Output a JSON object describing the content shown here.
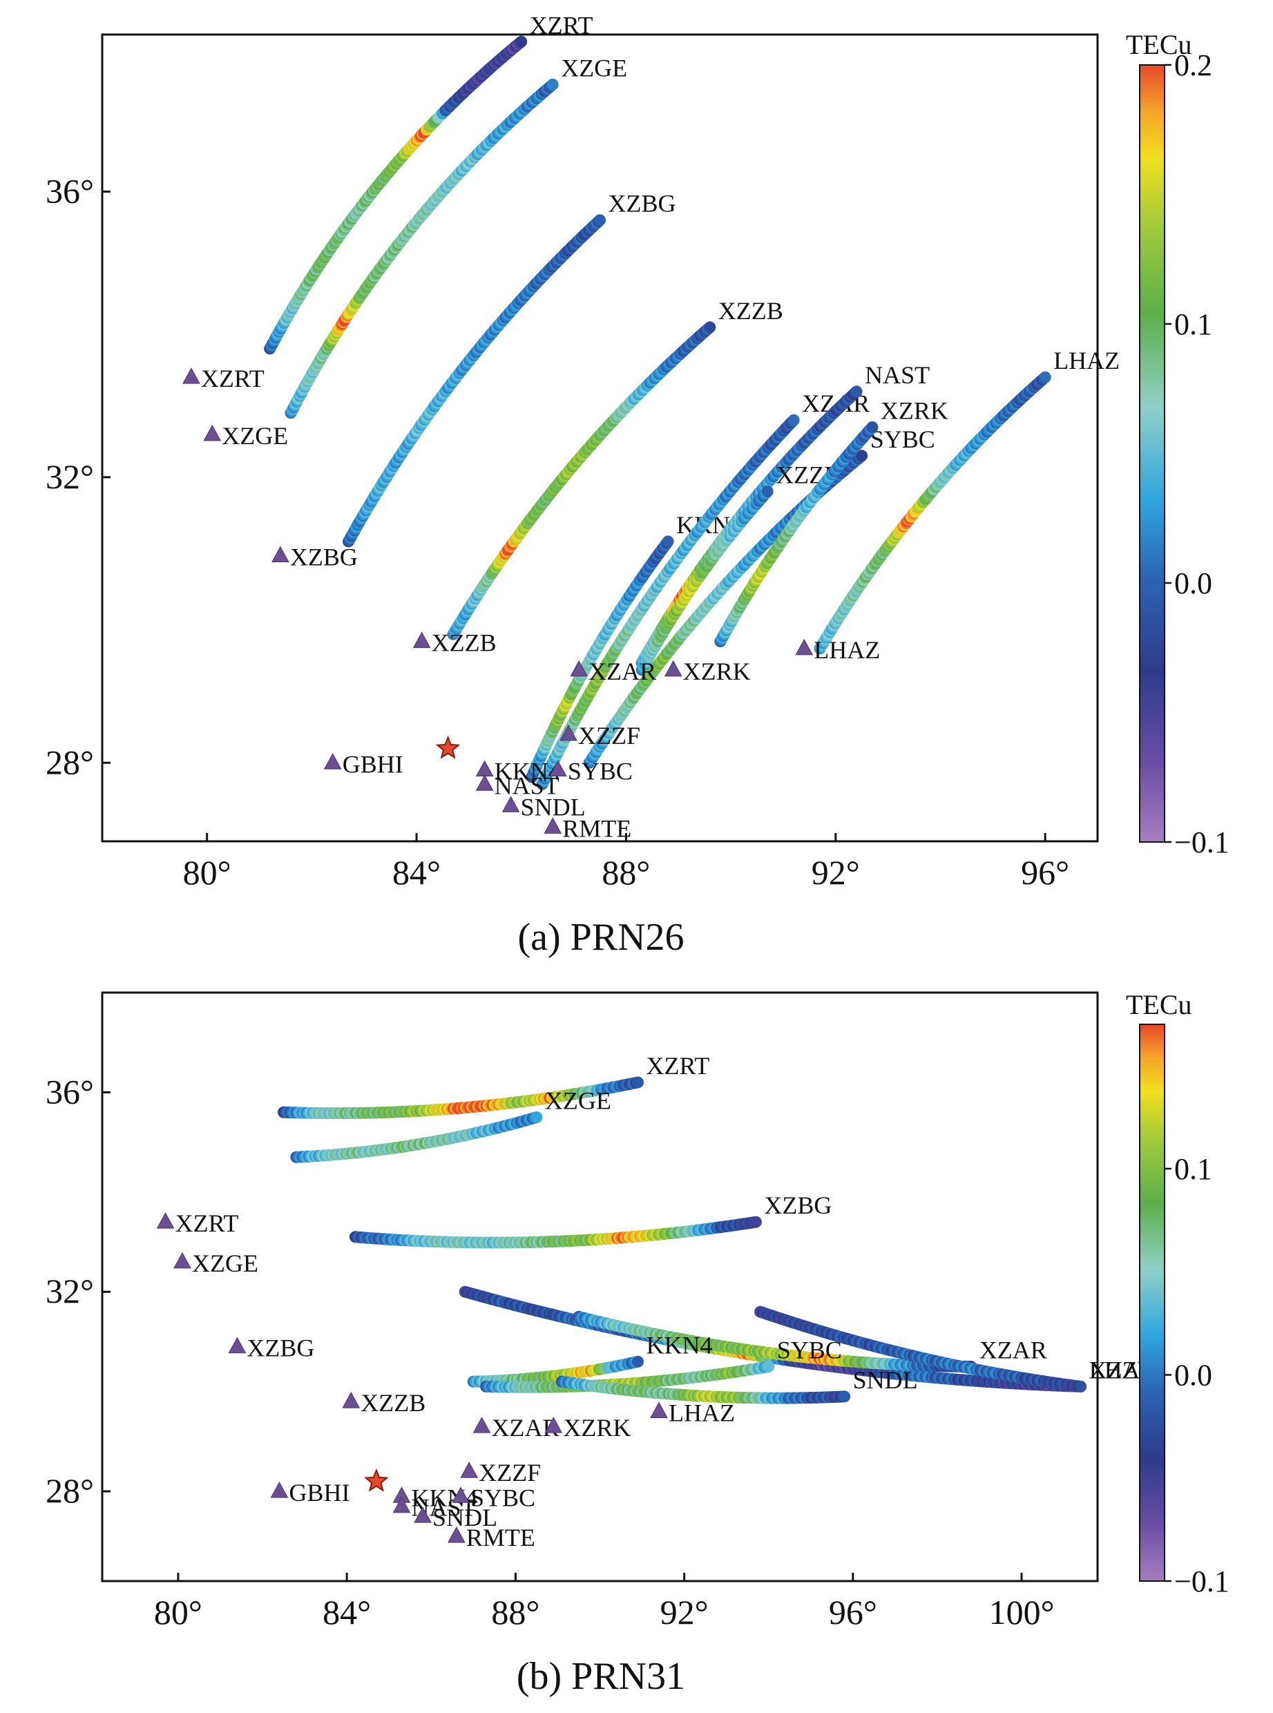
{
  "chart_data": [
    {
      "type": "scatter",
      "title": "(a) PRN26",
      "xlabel": "",
      "ylabel": "",
      "xlim": [
        78,
        97
      ],
      "ylim": [
        26.9,
        38.2
      ],
      "xticks": [
        80,
        84,
        88,
        92,
        96
      ],
      "xtick_labels": [
        "80°",
        "84°",
        "88°",
        "92°",
        "96°"
      ],
      "yticks": [
        28,
        32,
        36
      ],
      "ytick_labels": [
        "28°",
        "32°",
        "36°"
      ],
      "colorbar": {
        "label": "TECu",
        "min": -0.1,
        "max": 0.2,
        "ticks": [
          -0.1,
          0.0,
          0.1,
          0.2
        ],
        "tick_labels": [
          "−0.1",
          "0.0",
          "0.1",
          "0.2"
        ]
      },
      "epicenter": {
        "name": "KKN4",
        "lon": 84.6,
        "lat": 28.2
      },
      "stations": [
        {
          "name": "XZRT",
          "lon": 79.7,
          "lat": 33.4
        },
        {
          "name": "XZGE",
          "lon": 80.1,
          "lat": 32.6
        },
        {
          "name": "XZBG",
          "lon": 81.4,
          "lat": 30.9
        },
        {
          "name": "XZZB",
          "lon": 84.1,
          "lat": 29.7
        },
        {
          "name": "GBHI",
          "lon": 82.4,
          "lat": 28.0
        },
        {
          "name": "KKN4",
          "lon": 85.3,
          "lat": 27.9
        },
        {
          "name": "NAST",
          "lon": 85.3,
          "lat": 27.7
        },
        {
          "name": "SNDL",
          "lon": 85.8,
          "lat": 27.4
        },
        {
          "name": "SYBC",
          "lon": 86.7,
          "lat": 27.9
        },
        {
          "name": "RMTE",
          "lon": 86.6,
          "lat": 27.1
        },
        {
          "name": "XZZF",
          "lon": 86.9,
          "lat": 28.4
        },
        {
          "name": "XZAR",
          "lon": 87.1,
          "lat": 29.3
        },
        {
          "name": "XZRK",
          "lon": 88.9,
          "lat": 29.3
        },
        {
          "name": "LHAZ",
          "lon": 91.4,
          "lat": 29.6
        }
      ],
      "tracks": [
        {
          "name": "XZRT",
          "start": [
            81.2,
            33.8
          ],
          "end": [
            86.0,
            38.1
          ],
          "bulge": -0.1,
          "values": [
            0.0,
            0.05,
            0.08,
            0.1,
            0.09,
            0.08,
            0.1,
            0.12,
            0.2,
            0.0,
            -0.05,
            -0.04,
            -0.05
          ]
        },
        {
          "name": "XZGE",
          "start": [
            81.6,
            32.9
          ],
          "end": [
            86.6,
            37.5
          ],
          "bulge": -0.1,
          "values": [
            0.03,
            0.06,
            0.08,
            0.2,
            0.1,
            0.09,
            0.08,
            0.07,
            0.06,
            0.05,
            0.03,
            0.02,
            0.0
          ]
        },
        {
          "name": "XZBG",
          "start": [
            82.7,
            31.1
          ],
          "end": [
            87.5,
            35.6
          ],
          "bulge": -0.08,
          "values": [
            0.0,
            0.03,
            0.04,
            0.03,
            0.05,
            0.04,
            0.03,
            0.02,
            0.02,
            0.01,
            0.0,
            -0.01,
            -0.01
          ]
        },
        {
          "name": "XZZB",
          "start": [
            84.7,
            29.8
          ],
          "end": [
            89.6,
            34.1
          ],
          "bulge": -0.08,
          "values": [
            0.03,
            0.04,
            0.08,
            0.2,
            0.12,
            0.1,
            0.13,
            0.12,
            0.09,
            0.05,
            0.02,
            0.0,
            -0.01
          ]
        },
        {
          "name": "KKN4",
          "start": [
            86.2,
            27.8
          ],
          "end": [
            88.8,
            31.1
          ],
          "bulge": -0.06,
          "values": [
            0.0,
            0.04,
            0.1,
            0.15,
            0.08,
            0.06,
            0.05,
            0.04,
            0.02,
            0.0,
            -0.01
          ]
        },
        {
          "name": "XZAR",
          "start": [
            86.4,
            27.7
          ],
          "end": [
            91.2,
            32.8
          ],
          "bulge": -0.08,
          "values": [
            0.02,
            0.05,
            0.1,
            0.13,
            0.08,
            0.06,
            0.05,
            0.04,
            0.03,
            0.01,
            0.0,
            -0.01
          ]
        },
        {
          "name": "NAST",
          "start": [
            88.3,
            29.4
          ],
          "end": [
            92.4,
            33.2
          ],
          "bulge": -0.08,
          "values": [
            0.04,
            0.08,
            0.2,
            0.1,
            0.06,
            0.04,
            0.02,
            0.0,
            -0.01,
            -0.02
          ]
        },
        {
          "name": "XZZF",
          "start": [
            88.3,
            29.3
          ],
          "end": [
            90.7,
            31.8
          ],
          "bulge": -0.06,
          "values": [
            0.03,
            0.08,
            0.12,
            0.16,
            0.1,
            0.06,
            0.03,
            0.01
          ]
        },
        {
          "name": "SYBC",
          "start": [
            87.3,
            28.0
          ],
          "end": [
            92.5,
            32.3
          ],
          "bulge": -0.08,
          "values": [
            0.02,
            0.05,
            0.09,
            0.12,
            0.08,
            0.06,
            0.04,
            0.02,
            0.01,
            0.0,
            -0.01
          ]
        },
        {
          "name": "XZRK",
          "start": [
            89.8,
            29.7
          ],
          "end": [
            92.7,
            32.7
          ],
          "bulge": -0.06,
          "values": [
            0.02,
            0.08,
            0.15,
            0.1,
            0.06,
            0.03,
            0.01,
            0.0
          ]
        },
        {
          "name": "LHAZ",
          "start": [
            91.7,
            29.6
          ],
          "end": [
            96.0,
            33.4
          ],
          "bulge": -0.08,
          "values": [
            0.04,
            0.06,
            0.08,
            0.1,
            0.2,
            0.08,
            0.04,
            0.02,
            0.0,
            -0.01
          ]
        }
      ]
    },
    {
      "type": "scatter",
      "title": "(b) PRN31",
      "xlabel": "",
      "ylabel": "",
      "xlim": [
        78.2,
        101.8
      ],
      "ylim": [
        26.2,
        38.0
      ],
      "xticks": [
        80,
        84,
        88,
        92,
        96,
        100
      ],
      "xtick_labels": [
        "80°",
        "84°",
        "88°",
        "92°",
        "96°",
        "100°"
      ],
      "yticks": [
        28,
        32,
        36
      ],
      "ytick_labels": [
        "28°",
        "32°",
        "36°"
      ],
      "colorbar": {
        "label": "TECu",
        "min": -0.1,
        "max": 0.17,
        "ticks": [
          -0.1,
          0.0,
          0.1
        ],
        "tick_labels": [
          "−0.1",
          "0.0",
          "0.1"
        ]
      },
      "epicenter": {
        "name": "KKN4",
        "lon": 84.7,
        "lat": 28.2
      },
      "stations": [
        {
          "name": "XZRT",
          "lon": 79.7,
          "lat": 33.4
        },
        {
          "name": "XZGE",
          "lon": 80.1,
          "lat": 32.6
        },
        {
          "name": "XZBG",
          "lon": 81.4,
          "lat": 30.9
        },
        {
          "name": "XZZB",
          "lon": 84.1,
          "lat": 29.8
        },
        {
          "name": "GBHI",
          "lon": 82.4,
          "lat": 28.0
        },
        {
          "name": "KKN4",
          "lon": 85.3,
          "lat": 27.9
        },
        {
          "name": "NAST",
          "lon": 85.3,
          "lat": 27.7
        },
        {
          "name": "SNDL",
          "lon": 85.8,
          "lat": 27.5
        },
        {
          "name": "SYBC",
          "lon": 86.7,
          "lat": 27.9
        },
        {
          "name": "RMTE",
          "lon": 86.6,
          "lat": 27.1
        },
        {
          "name": "XZZF",
          "lon": 86.9,
          "lat": 28.4
        },
        {
          "name": "XZAR",
          "lon": 87.2,
          "lat": 29.3
        },
        {
          "name": "XZRK",
          "lon": 88.9,
          "lat": 29.3
        },
        {
          "name": "LHAZ",
          "lon": 91.4,
          "lat": 29.6
        }
      ],
      "tracks": [
        {
          "name": "XZRT",
          "start": [
            82.5,
            35.6
          ],
          "end": [
            90.9,
            36.2
          ],
          "bulge": 0.06,
          "values": [
            -0.02,
            0.04,
            0.06,
            0.08,
            0.09,
            0.12,
            0.17,
            0.16,
            0.1,
            0.15,
            0.08,
            0.0,
            -0.02
          ]
        },
        {
          "name": "XZGE",
          "start": [
            82.8,
            34.7
          ],
          "end": [
            88.5,
            35.5
          ],
          "bulge": 0.06,
          "values": [
            0.0,
            0.04,
            0.06,
            0.05,
            0.07,
            0.06,
            0.05,
            0.03,
            0.01,
            0.0
          ]
        },
        {
          "name": "XZBG",
          "start": [
            84.2,
            33.1
          ],
          "end": [
            93.7,
            33.4
          ],
          "bulge": 0.06,
          "values": [
            -0.02,
            0.0,
            0.04,
            0.05,
            0.04,
            0.06,
            0.08,
            0.1,
            0.16,
            0.12,
            0.05,
            -0.02,
            -0.04
          ]
        },
        {
          "name": "XZZB",
          "start": [
            86.8,
            32.0
          ],
          "end": [
            101.4,
            30.1
          ],
          "bulge": 0.06,
          "values": [
            -0.04,
            -0.02,
            -0.03,
            0.0,
            -0.02,
            0.02,
            0.1,
            0.16,
            -0.04,
            -0.06,
            -0.04,
            0.0,
            -0.02,
            -0.04,
            -0.05,
            -0.06
          ]
        },
        {
          "name": "XZAR",
          "start": [
            89.5,
            31.5
          ],
          "end": [
            98.8,
            30.5
          ],
          "bulge": 0.06,
          "values": [
            0.0,
            0.04,
            0.06,
            0.08,
            0.09,
            0.1,
            0.12,
            0.16,
            0.08,
            0.02,
            -0.02,
            -0.04
          ]
        },
        {
          "name": "KKN4",
          "start": [
            87.0,
            30.2
          ],
          "end": [
            90.9,
            30.6
          ],
          "bulge": 0.05,
          "values": [
            0.02,
            0.05,
            0.07,
            0.09,
            0.12,
            0.15,
            0.02,
            0.0
          ]
        },
        {
          "name": "SYBC",
          "start": [
            87.3,
            30.1
          ],
          "end": [
            94.0,
            30.5
          ],
          "bulge": 0.05,
          "values": [
            0.0,
            0.05,
            0.08,
            0.1,
            0.12,
            0.08,
            0.06,
            0.1,
            0.02
          ]
        },
        {
          "name": "SNDL",
          "start": [
            89.1,
            30.2
          ],
          "end": [
            95.8,
            29.9
          ],
          "bulge": 0.05,
          "values": [
            0.0,
            0.05,
            0.08,
            0.06,
            0.12,
            0.1,
            0.02,
            -0.02,
            -0.03
          ]
        },
        {
          "name": "LHAZ",
          "start": [
            93.8,
            31.6
          ],
          "end": [
            101.4,
            30.1
          ],
          "bulge": 0.05,
          "values": [
            -0.04,
            -0.03,
            -0.02,
            -0.01,
            0.0,
            -0.02,
            -0.04
          ]
        }
      ]
    }
  ]
}
